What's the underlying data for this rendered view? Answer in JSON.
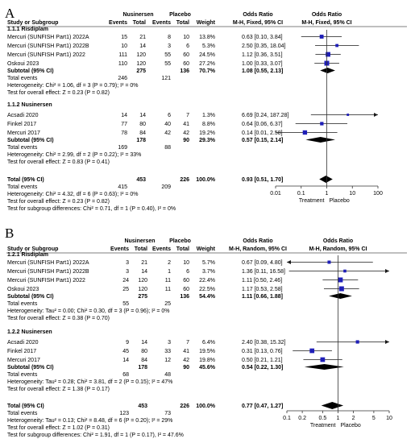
{
  "chart_data": [
    {
      "type": "forest",
      "panel": "A",
      "headers": {
        "group1": "Nusinersen",
        "group2": "Placebo",
        "or_title": "Odds Ratio",
        "or_title2": "Odds Ratio",
        "study": "Study or Subgroup",
        "events1": "Events",
        "total1": "Total",
        "events2": "Events",
        "total2": "Total",
        "weight": "Weight",
        "method": "M-H, Fixed, 95% CI",
        "method2": "M-H, Fixed, 95% CI"
      },
      "subgroups": [
        {
          "title": "1.1.1 Risdiplam",
          "studies": [
            {
              "name": "Mercuri (SUNFISH Part1) 2022A",
              "e1": "15",
              "t1": "21",
              "e2": "8",
              "t2": "10",
              "w": "13.8%",
              "ci": "0.63 [0.10, 3.84]",
              "or": 0.63,
              "lo": 0.1,
              "hi": 3.84,
              "ws": 13.8
            },
            {
              "name": "Mercuri (SUNFISH Part1) 2022B",
              "e1": "10",
              "t1": "14",
              "e2": "3",
              "t2": "6",
              "w": "5.3%",
              "ci": "2.50 [0.35, 18.04]",
              "or": 2.5,
              "lo": 0.35,
              "hi": 18.04,
              "ws": 5.3
            },
            {
              "name": "Mercuri (SUNFISH Part1) 2022",
              "e1": "111",
              "t1": "120",
              "e2": "55",
              "t2": "60",
              "w": "24.5%",
              "ci": "1.12 [0.36, 3.51]",
              "or": 1.12,
              "lo": 0.36,
              "hi": 3.51,
              "ws": 24.5
            },
            {
              "name": "Oskoui 2023",
              "e1": "110",
              "t1": "120",
              "e2": "55",
              "t2": "60",
              "w": "27.2%",
              "ci": "1.00 [0.33, 3.07]",
              "or": 1.0,
              "lo": 0.33,
              "hi": 3.07,
              "ws": 27.2
            }
          ],
          "subtotal": {
            "label": "Subtotal (95% CI)",
            "t1": "275",
            "t2": "136",
            "w": "70.7%",
            "ci": "1.08 [0.55, 2.13]",
            "or": 1.08,
            "lo": 0.55,
            "hi": 2.13
          },
          "total_events": {
            "label": "Total events",
            "e1": "246",
            "e2": "121"
          },
          "heterogeneity": "Heterogeneity: Chi² = 1.06, df = 3 (P = 0.79); I² = 0%",
          "overall": "Test for overall effect: Z = 0.23 (P = 0.82)"
        },
        {
          "title": "1.1.2 Nusinersen",
          "studies": [
            {
              "name": "Acsadi 2020",
              "e1": "14",
              "t1": "14",
              "e2": "6",
              "t2": "7",
              "w": "1.3%",
              "ci": "6.69 [0.24, 187.28]",
              "or": 6.69,
              "lo": 0.24,
              "hi": 187.28,
              "ws": 1.3
            },
            {
              "name": "Finkel 2017",
              "e1": "77",
              "t1": "80",
              "e2": "40",
              "t2": "41",
              "w": "8.8%",
              "ci": "0.64 [0.06, 6.37]",
              "or": 0.64,
              "lo": 0.06,
              "hi": 6.37,
              "ws": 8.8
            },
            {
              "name": "Mercuri 2017",
              "e1": "78",
              "t1": "84",
              "e2": "42",
              "t2": "42",
              "w": "19.2%",
              "ci": "0.14 [0.01, 2.58]",
              "or": 0.14,
              "lo": 0.01,
              "hi": 2.58,
              "ws": 19.2
            }
          ],
          "subtotal": {
            "label": "Subtotal (95% CI)",
            "t1": "178",
            "t2": "90",
            "w": "29.3%",
            "ci": "0.57 [0.15, 2.14]",
            "or": 0.57,
            "lo": 0.15,
            "hi": 2.14
          },
          "total_events": {
            "label": "Total events",
            "e1": "169",
            "e2": "88"
          },
          "heterogeneity": "Heterogeneity: Chi² = 2.99, df = 2 (P = 0.22); I² = 33%",
          "overall": "Test for overall effect: Z = 0.83 (P = 0.41)"
        }
      ],
      "total": {
        "label": "Total (95% CI)",
        "t1": "453",
        "t2": "226",
        "w": "100.0%",
        "ci": "0.93 [0.51, 1.70]",
        "or": 0.93,
        "lo": 0.51,
        "hi": 1.7
      },
      "total_events": {
        "label": "Total events",
        "e1": "415",
        "e2": "209"
      },
      "heterogeneity": "Heterogeneity: Chi² = 4.32, df = 6 (P = 0.63); I² = 0%",
      "overall": "Test for overall effect: Z = 0.23 (P = 0.82)",
      "subgroup_diff": "Test for subgroup differences: Chi² = 0.71, df = 1 (P = 0.40), I² = 0%",
      "axis": {
        "ticks": [
          0.01,
          0.1,
          1,
          10,
          100
        ],
        "tick_labels": [
          "0.01",
          "0.1",
          "1",
          "10",
          "100"
        ],
        "xlim": [
          0.01,
          100
        ],
        "scale": "log",
        "left_label": "Treatment",
        "right_label": "Placebo"
      }
    },
    {
      "type": "forest",
      "panel": "B",
      "headers": {
        "group1": "Nusinersen",
        "group2": "Placebo",
        "or_title": "Odds Ratio",
        "or_title2": "Odds Ratio",
        "study": "Study or Subgroup",
        "events1": "Events",
        "total1": "Total",
        "events2": "Events",
        "total2": "Total",
        "weight": "Weight",
        "method": "M-H, Random, 95% CI",
        "method2": "M-H, Random, 95% CI"
      },
      "subgroups": [
        {
          "title": "1.2.1 Risdiplam",
          "studies": [
            {
              "name": "Mercuri (SUNFISH Part1) 2022A",
              "e1": "3",
              "t1": "21",
              "e2": "2",
              "t2": "10",
              "w": "5.7%",
              "ci": "0.67 [0.09, 4.80]",
              "or": 0.67,
              "lo": 0.09,
              "hi": 4.8,
              "ws": 5.7
            },
            {
              "name": "Mercuri (SUNFISH Part1) 2022B",
              "e1": "3",
              "t1": "14",
              "e2": "1",
              "t2": "6",
              "w": "3.7%",
              "ci": "1.36 [0.11, 16.58]",
              "or": 1.36,
              "lo": 0.11,
              "hi": 16.58,
              "ws": 3.7
            },
            {
              "name": "Mercuri (SUNFISH Part1) 2022",
              "e1": "24",
              "t1": "120",
              "e2": "11",
              "t2": "60",
              "w": "22.4%",
              "ci": "1.11 [0.50, 2.46]",
              "or": 1.11,
              "lo": 0.5,
              "hi": 2.46,
              "ws": 22.4
            },
            {
              "name": "Oskoui 2023",
              "e1": "25",
              "t1": "120",
              "e2": "11",
              "t2": "60",
              "w": "22.5%",
              "ci": "1.17 [0.53, 2.58]",
              "or": 1.17,
              "lo": 0.53,
              "hi": 2.58,
              "ws": 22.5
            }
          ],
          "subtotal": {
            "label": "Subtotal (95% CI)",
            "t1": "275",
            "t2": "136",
            "w": "54.4%",
            "ci": "1.11 [0.66, 1.88]",
            "or": 1.11,
            "lo": 0.66,
            "hi": 1.88
          },
          "total_events": {
            "label": "Total events",
            "e1": "55",
            "e2": "25"
          },
          "heterogeneity": "Heterogeneity: Tau² = 0.00; Chi² = 0.30, df = 3 (P = 0.96); I² = 0%",
          "overall": "Test for overall effect: Z = 0.38 (P = 0.70)"
        },
        {
          "title": "1.2.2 Nusinersen",
          "studies": [
            {
              "name": "Acsadi 2020",
              "e1": "9",
              "t1": "14",
              "e2": "3",
              "t2": "7",
              "w": "6.4%",
              "ci": "2.40 [0.38, 15.32]",
              "or": 2.4,
              "lo": 0.38,
              "hi": 15.32,
              "ws": 6.4
            },
            {
              "name": "Finkel 2017",
              "e1": "45",
              "t1": "80",
              "e2": "33",
              "t2": "41",
              "w": "19.5%",
              "ci": "0.31 [0.13, 0.76]",
              "or": 0.31,
              "lo": 0.13,
              "hi": 0.76,
              "ws": 19.5
            },
            {
              "name": "Mercuri 2017",
              "e1": "14",
              "t1": "84",
              "e2": "12",
              "t2": "42",
              "w": "19.8%",
              "ci": "0.50 [0.21, 1.21]",
              "or": 0.5,
              "lo": 0.21,
              "hi": 1.21,
              "ws": 19.8
            }
          ],
          "subtotal": {
            "label": "Subtotal (95% CI)",
            "t1": "178",
            "t2": "90",
            "w": "45.6%",
            "ci": "0.54 [0.22, 1.30]",
            "or": 0.54,
            "lo": 0.22,
            "hi": 1.3
          },
          "total_events": {
            "label": "Total events",
            "e1": "68",
            "e2": "48"
          },
          "heterogeneity": "Heterogeneity: Tau² = 0.28; Chi² = 3.81, df = 2 (P = 0.15); I² = 47%",
          "overall": "Test for overall effect: Z = 1.38 (P = 0.17)"
        }
      ],
      "total": {
        "label": "Total (95% CI)",
        "t1": "453",
        "t2": "226",
        "w": "100.0%",
        "ci": "0.77 [0.47, 1.27]",
        "or": 0.77,
        "lo": 0.47,
        "hi": 1.27
      },
      "total_events": {
        "label": "Total events",
        "e1": "123",
        "e2": "73"
      },
      "heterogeneity": "Heterogeneity: Tau² = 0.13; Chi² = 8.48, df = 6 (P = 0.20); I² = 29%",
      "overall": "Test for overall effect: Z = 1.02 (P = 0.31)",
      "subgroup_diff": "Test for subgroup differences: Chi² = 1.91, df = 1 (P = 0.17), I² = 47.6%",
      "axis": {
        "ticks": [
          0.1,
          0.2,
          0.5,
          1,
          2,
          5,
          10
        ],
        "tick_labels": [
          "0.1",
          "0.2",
          "0.5",
          "1",
          "2",
          "5",
          "10"
        ],
        "xlim": [
          0.1,
          10
        ],
        "scale": "log",
        "left_label": "Treatment",
        "right_label": "Placebo"
      }
    }
  ],
  "colors": {
    "marker": "#1f1fb8",
    "diamond": "#000000",
    "ci_line": "#1a1a1a",
    "separator": "#555555",
    "axis": "#333333"
  }
}
